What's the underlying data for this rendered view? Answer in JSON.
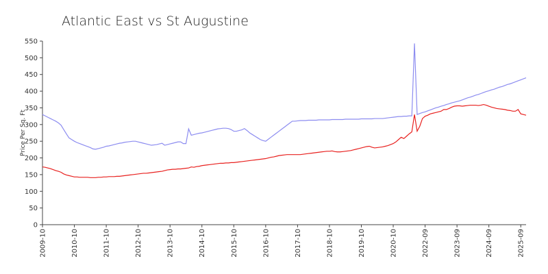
{
  "chart_data": {
    "type": "line",
    "title": "Atlantic East vs St Augustine",
    "y_label": "Price Per Sq. Ft",
    "categories": [
      "2009-10",
      null,
      null,
      null,
      null,
      null,
      null,
      null,
      null,
      null,
      null,
      null,
      "2010-10",
      null,
      null,
      null,
      null,
      null,
      null,
      null,
      null,
      null,
      null,
      null,
      "2011-10",
      null,
      null,
      null,
      null,
      null,
      null,
      null,
      null,
      null,
      null,
      null,
      "2012-10",
      null,
      null,
      null,
      null,
      null,
      null,
      null,
      null,
      null,
      null,
      null,
      "2013-10",
      null,
      null,
      null,
      null,
      null,
      null,
      null,
      null,
      null,
      null,
      null,
      "2014-10",
      null,
      null,
      null,
      null,
      null,
      null,
      null,
      null,
      null,
      null,
      null,
      "2015-10",
      null,
      null,
      null,
      null,
      null,
      null,
      null,
      null,
      null,
      null,
      null,
      "2016-10",
      null,
      null,
      null,
      null,
      null,
      null,
      null,
      null,
      null,
      null,
      null,
      "2017-10",
      null,
      null,
      null,
      null,
      null,
      null,
      null,
      null,
      null,
      null,
      null,
      "2018-10",
      null,
      null,
      null,
      null,
      null,
      null,
      null,
      null,
      null,
      null,
      null,
      "2019-10",
      null,
      null,
      null,
      null,
      null,
      null,
      null,
      null,
      null,
      null,
      null,
      "2020-10",
      null,
      null,
      null,
      null,
      null,
      null,
      null,
      null,
      null,
      null,
      null,
      "2022-09",
      null,
      null,
      null,
      null,
      null,
      null,
      null,
      null,
      null,
      null,
      null,
      "2023-09",
      null,
      null,
      null,
      null,
      null,
      null,
      null,
      null,
      null,
      null,
      null,
      "2024-09",
      null,
      null,
      null,
      null,
      null,
      null,
      null,
      null,
      null,
      null,
      null,
      "2025-09",
      null,
      null
    ],
    "series": [
      {
        "color": "#8c8cf0",
        "values": [
          330,
          326,
          322,
          318,
          314,
          310,
          305,
          298,
          285,
          272,
          260,
          255,
          250,
          246,
          243,
          240,
          237,
          234,
          231,
          227,
          226,
          228,
          230,
          232,
          235,
          236,
          238,
          240,
          242,
          244,
          245,
          247,
          248,
          249,
          250,
          250,
          248,
          246,
          244,
          242,
          240,
          238,
          239,
          240,
          242,
          244,
          238,
          240,
          242,
          244,
          246,
          248,
          248,
          243,
          243,
          287,
          268,
          270,
          272,
          274,
          275,
          277,
          279,
          281,
          283,
          285,
          287,
          288,
          289,
          289,
          288,
          285,
          280,
          280,
          282,
          284,
          288,
          282,
          275,
          270,
          265,
          260,
          255,
          252,
          250,
          256,
          262,
          268,
          274,
          280,
          286,
          292,
          298,
          304,
          310,
          310,
          311,
          312,
          312,
          312,
          313,
          313,
          313,
          313,
          314,
          314,
          314,
          314,
          314,
          315,
          315,
          315,
          315,
          315,
          316,
          316,
          316,
          316,
          316,
          316,
          317,
          317,
          317,
          317,
          317,
          318,
          318,
          318,
          318,
          319,
          320,
          321,
          322,
          323,
          324,
          324,
          325,
          325,
          326,
          326,
          543,
          330,
          333,
          336,
          338,
          341,
          344,
          347,
          350,
          352,
          355,
          357,
          360,
          362,
          365,
          367,
          369,
          371,
          374,
          377,
          380,
          382,
          385,
          388,
          390,
          393,
          396,
          399,
          401,
          404,
          406,
          409,
          412,
          414,
          417,
          420,
          422,
          425,
          428,
          431,
          434,
          437,
          440
        ]
      },
      {
        "color": "#e8201e",
        "values": [
          173,
          172,
          170,
          168,
          165,
          162,
          160,
          157,
          152,
          149,
          147,
          145,
          143,
          143,
          142,
          142,
          142,
          142,
          141,
          141,
          141,
          142,
          142,
          143,
          143,
          144,
          144,
          144,
          145,
          145,
          146,
          147,
          148,
          149,
          150,
          151,
          152,
          153,
          154,
          154,
          155,
          156,
          157,
          158,
          159,
          160,
          162,
          164,
          165,
          166,
          166,
          167,
          167,
          168,
          169,
          170,
          173,
          172,
          174,
          175,
          177,
          178,
          179,
          180,
          181,
          182,
          183,
          184,
          184,
          185,
          185,
          186,
          186,
          187,
          188,
          189,
          190,
          191,
          192,
          193,
          194,
          195,
          196,
          197,
          198,
          200,
          202,
          203,
          205,
          207,
          208,
          209,
          210,
          210,
          210,
          210,
          210,
          210,
          211,
          212,
          213,
          214,
          215,
          216,
          217,
          218,
          219,
          220,
          220,
          221,
          219,
          218,
          218,
          219,
          220,
          221,
          222,
          224,
          226,
          228,
          230,
          232,
          234,
          235,
          232,
          230,
          231,
          232,
          233,
          235,
          237,
          240,
          243,
          248,
          255,
          262,
          258,
          265,
          272,
          278,
          330,
          280,
          295,
          318,
          325,
          328,
          332,
          334,
          336,
          338,
          340,
          345,
          345,
          348,
          352,
          355,
          356,
          356,
          355,
          356,
          357,
          358,
          358,
          358,
          357,
          358,
          360,
          358,
          355,
          352,
          350,
          348,
          347,
          346,
          345,
          343,
          342,
          340,
          340,
          345,
          332,
          330,
          328
        ]
      }
    ],
    "ylim": [
      0,
      550
    ],
    "yticks": [
      0,
      50,
      100,
      150,
      200,
      250,
      300,
      350,
      400,
      450,
      500,
      550
    ]
  }
}
